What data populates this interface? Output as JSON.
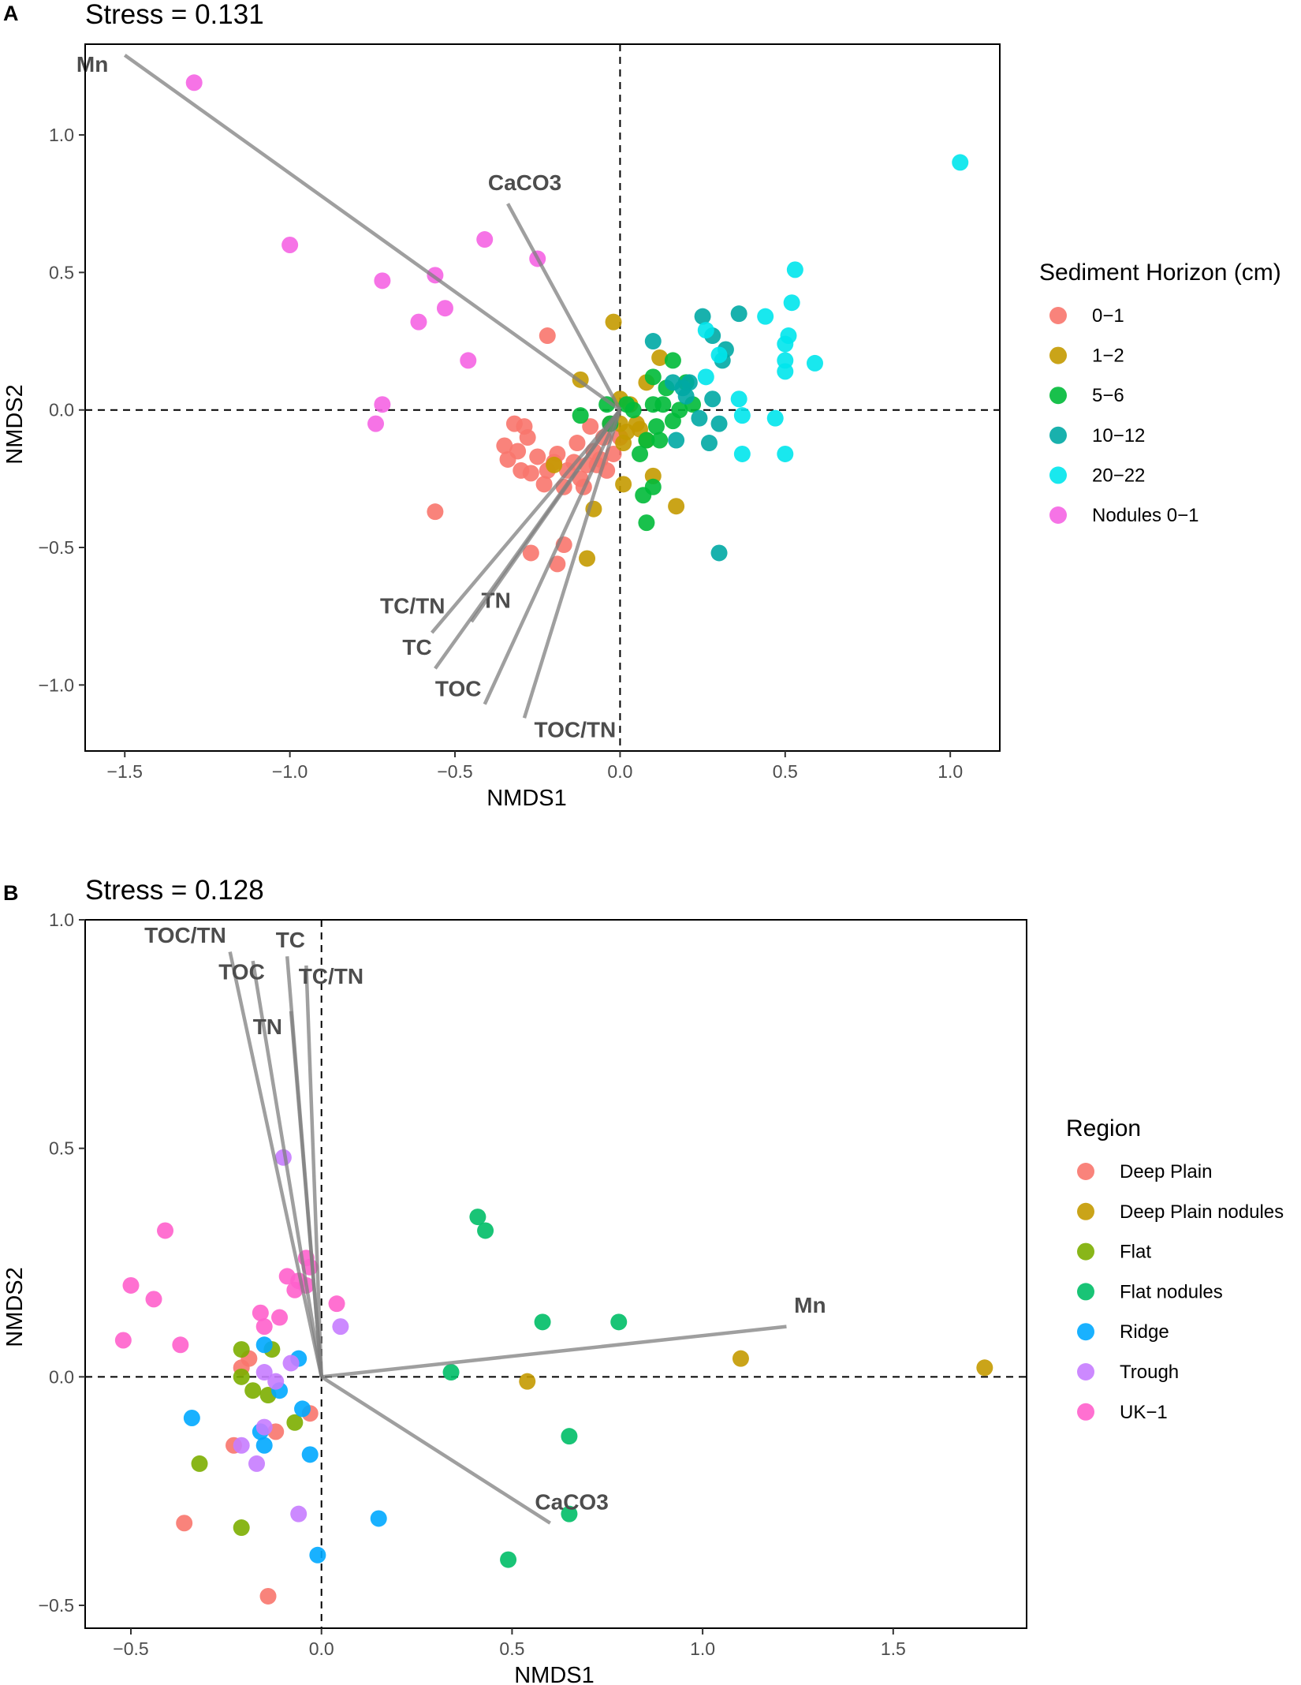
{
  "chart_data": [
    {
      "type": "scatter",
      "panel_label": "A",
      "title": "Stress = 0.131",
      "xlabel": "NMDS1",
      "ylabel": "NMDS2",
      "xlim": [
        -1.62,
        1.15
      ],
      "ylim": [
        -1.24,
        1.33
      ],
      "xticks": [
        -1.5,
        -1.0,
        -0.5,
        0.0,
        0.5,
        1.0
      ],
      "xtick_labels": [
        "−1.5",
        "−1.0",
        "−0.5",
        "0.0",
        "0.5",
        "1.0"
      ],
      "yticks": [
        -1.0,
        -0.5,
        0.0,
        0.5,
        1.0
      ],
      "ytick_labels": [
        "−1.0",
        "−0.5",
        "0.0",
        "0.5",
        "1.0"
      ],
      "grid": false,
      "legend_position": "right",
      "legend_title": "Sediment Horizon (cm)",
      "series": [
        {
          "name": "0−1",
          "color": "#F8766D",
          "points": [
            [
              -0.22,
              0.27
            ],
            [
              -0.32,
              -0.05
            ],
            [
              -0.29,
              -0.06
            ],
            [
              -0.35,
              -0.13
            ],
            [
              -0.34,
              -0.18
            ],
            [
              -0.31,
              -0.15
            ],
            [
              -0.28,
              -0.1
            ],
            [
              -0.25,
              -0.17
            ],
            [
              -0.22,
              -0.22
            ],
            [
              -0.19,
              -0.16
            ],
            [
              -0.16,
              -0.22
            ],
            [
              -0.13,
              -0.12
            ],
            [
              -0.1,
              -0.2
            ],
            [
              -0.08,
              -0.15
            ],
            [
              -0.05,
              -0.1
            ],
            [
              -0.03,
              -0.05
            ],
            [
              -0.3,
              -0.22
            ],
            [
              -0.27,
              -0.23
            ],
            [
              -0.23,
              -0.27
            ],
            [
              -0.2,
              -0.19
            ],
            [
              -0.17,
              -0.28
            ],
            [
              -0.14,
              -0.19
            ],
            [
              -0.12,
              -0.25
            ],
            [
              -0.06,
              -0.18
            ],
            [
              -0.02,
              -0.16
            ],
            [
              -0.09,
              -0.06
            ],
            [
              -0.56,
              -0.37
            ],
            [
              -0.27,
              -0.52
            ],
            [
              -0.17,
              -0.49
            ],
            [
              -0.19,
              -0.56
            ],
            [
              -0.07,
              -0.2
            ],
            [
              -0.04,
              -0.22
            ],
            [
              0.0,
              -0.1
            ],
            [
              -0.11,
              -0.28
            ]
          ]
        },
        {
          "name": "1−2",
          "color": "#C49A00",
          "points": [
            [
              -0.02,
              0.32
            ],
            [
              -0.12,
              0.11
            ],
            [
              0.12,
              0.19
            ],
            [
              0.08,
              0.1
            ],
            [
              0.0,
              0.04
            ],
            [
              0.02,
              -0.08
            ],
            [
              0.05,
              -0.05
            ],
            [
              0.06,
              -0.07
            ],
            [
              0.01,
              -0.12
            ],
            [
              0.0,
              -0.05
            ],
            [
              -0.2,
              -0.2
            ],
            [
              -0.08,
              -0.36
            ],
            [
              -0.1,
              -0.54
            ],
            [
              0.17,
              -0.35
            ],
            [
              0.1,
              -0.24
            ],
            [
              0.01,
              -0.27
            ],
            [
              0.03,
              0.02
            ],
            [
              0.08,
              -0.11
            ]
          ]
        },
        {
          "name": "5−6",
          "color": "#00BA38",
          "points": [
            [
              -0.12,
              -0.02
            ],
            [
              -0.04,
              0.02
            ],
            [
              0.02,
              0.02
            ],
            [
              0.1,
              0.12
            ],
            [
              0.14,
              0.08
            ],
            [
              0.16,
              0.18
            ],
            [
              0.1,
              0.02
            ],
            [
              0.13,
              0.02
            ],
            [
              0.18,
              0.0
            ],
            [
              0.22,
              0.02
            ],
            [
              0.16,
              -0.04
            ],
            [
              0.11,
              -0.06
            ],
            [
              0.08,
              -0.11
            ],
            [
              0.12,
              -0.11
            ],
            [
              0.06,
              -0.16
            ],
            [
              0.1,
              -0.28
            ],
            [
              0.07,
              -0.31
            ],
            [
              0.08,
              -0.41
            ],
            [
              -0.03,
              -0.05
            ],
            [
              0.04,
              0.0
            ],
            [
              0.2,
              0.1
            ]
          ]
        },
        {
          "name": "10−12",
          "color": "#00A9A4",
          "points": [
            [
              0.1,
              0.25
            ],
            [
              0.25,
              0.34
            ],
            [
              0.28,
              0.27
            ],
            [
              0.36,
              0.35
            ],
            [
              0.32,
              0.22
            ],
            [
              0.31,
              0.18
            ],
            [
              0.21,
              0.1
            ],
            [
              0.19,
              0.08
            ],
            [
              0.28,
              0.04
            ],
            [
              0.24,
              -0.03
            ],
            [
              0.27,
              -0.12
            ],
            [
              0.17,
              -0.11
            ],
            [
              0.3,
              -0.05
            ],
            [
              0.3,
              -0.52
            ],
            [
              0.2,
              0.05
            ],
            [
              0.16,
              0.1
            ]
          ]
        },
        {
          "name": "20−22",
          "color": "#00E5EC",
          "points": [
            [
              1.03,
              0.9
            ],
            [
              0.53,
              0.51
            ],
            [
              0.52,
              0.39
            ],
            [
              0.44,
              0.34
            ],
            [
              0.51,
              0.27
            ],
            [
              0.5,
              0.24
            ],
            [
              0.5,
              0.18
            ],
            [
              0.59,
              0.17
            ],
            [
              0.5,
              0.14
            ],
            [
              0.26,
              0.29
            ],
            [
              0.3,
              0.2
            ],
            [
              0.26,
              0.12
            ],
            [
              0.36,
              0.04
            ],
            [
              0.37,
              -0.02
            ],
            [
              0.37,
              -0.16
            ],
            [
              0.47,
              -0.03
            ],
            [
              0.5,
              -0.16
            ]
          ]
        },
        {
          "name": "Nodules 0−1",
          "color": "#F564E3",
          "points": [
            [
              -1.29,
              1.19
            ],
            [
              -1.0,
              0.6
            ],
            [
              -0.41,
              0.62
            ],
            [
              -0.25,
              0.55
            ],
            [
              -0.72,
              0.47
            ],
            [
              -0.56,
              0.49
            ],
            [
              -0.53,
              0.37
            ],
            [
              -0.61,
              0.32
            ],
            [
              -0.46,
              0.18
            ],
            [
              -0.72,
              0.02
            ],
            [
              -0.74,
              -0.05
            ]
          ]
        }
      ],
      "vectors": [
        {
          "label": "Mn",
          "end": [
            -1.5,
            1.29
          ],
          "label_pos": [
            -1.55,
            1.23
          ],
          "anchor": "end"
        },
        {
          "label": "CaCO3",
          "end": [
            -0.34,
            0.75
          ],
          "label_pos": [
            -0.4,
            0.8
          ],
          "anchor": "start"
        },
        {
          "label": "TC/TN",
          "end": [
            -0.57,
            -0.81
          ],
          "label_pos": [
            -0.53,
            -0.74
          ],
          "anchor": "end"
        },
        {
          "label": "TN",
          "end": [
            -0.45,
            -0.77
          ],
          "label_pos": [
            -0.42,
            -0.72
          ],
          "anchor": "start"
        },
        {
          "label": "TC",
          "end": [
            -0.56,
            -0.94
          ],
          "label_pos": [
            -0.57,
            -0.89
          ],
          "anchor": "end"
        },
        {
          "label": "TOC",
          "end": [
            -0.41,
            -1.07
          ],
          "label_pos": [
            -0.56,
            -1.04
          ],
          "anchor": "start"
        },
        {
          "label": "TOC/TN",
          "end": [
            -0.29,
            -1.12
          ],
          "label_pos": [
            -0.26,
            -1.19
          ],
          "anchor": "start"
        }
      ]
    },
    {
      "type": "scatter",
      "panel_label": "B",
      "title": "Stress = 0.128",
      "xlabel": "NMDS1",
      "ylabel": "NMDS2",
      "xlim": [
        -0.62,
        1.85
      ],
      "ylim": [
        -0.55,
        1.0
      ],
      "xticks": [
        -0.5,
        0.0,
        0.5,
        1.0,
        1.5
      ],
      "xtick_labels": [
        "−0.5",
        "0.0",
        "0.5",
        "1.0",
        "1.5"
      ],
      "yticks": [
        -0.5,
        0.0,
        0.5,
        1.0
      ],
      "ytick_labels": [
        "−0.5",
        "0.0",
        "0.5",
        "1.0"
      ],
      "grid": false,
      "legend_position": "right",
      "legend_title": "Region",
      "series": [
        {
          "name": "Deep Plain",
          "color": "#F8766D",
          "points": [
            [
              -0.21,
              0.02
            ],
            [
              -0.19,
              0.04
            ],
            [
              -0.03,
              -0.08
            ],
            [
              -0.12,
              -0.12
            ],
            [
              -0.23,
              -0.15
            ],
            [
              -0.36,
              -0.32
            ],
            [
              -0.14,
              -0.48
            ]
          ]
        },
        {
          "name": "Deep Plain nodules",
          "color": "#C49A00",
          "points": [
            [
              1.1,
              0.04
            ],
            [
              1.74,
              0.02
            ],
            [
              0.54,
              -0.01
            ]
          ]
        },
        {
          "name": "Flat",
          "color": "#7CAE00",
          "points": [
            [
              -0.21,
              0.06
            ],
            [
              -0.13,
              0.06
            ],
            [
              -0.21,
              0.0
            ],
            [
              -0.18,
              -0.03
            ],
            [
              -0.14,
              -0.04
            ],
            [
              -0.07,
              -0.1
            ],
            [
              -0.32,
              -0.19
            ],
            [
              -0.21,
              -0.33
            ]
          ]
        },
        {
          "name": "Flat nodules",
          "color": "#00BE67",
          "points": [
            [
              0.41,
              0.35
            ],
            [
              0.43,
              0.32
            ],
            [
              0.58,
              0.12
            ],
            [
              0.78,
              0.12
            ],
            [
              0.34,
              0.01
            ],
            [
              0.65,
              -0.13
            ],
            [
              0.65,
              -0.3
            ],
            [
              0.49,
              -0.4
            ]
          ]
        },
        {
          "name": "Ridge",
          "color": "#00A9FF",
          "points": [
            [
              -0.06,
              0.04
            ],
            [
              -0.15,
              0.07
            ],
            [
              -0.11,
              -0.03
            ],
            [
              -0.05,
              -0.07
            ],
            [
              -0.34,
              -0.09
            ],
            [
              -0.16,
              -0.12
            ],
            [
              -0.15,
              -0.15
            ],
            [
              -0.03,
              -0.17
            ],
            [
              0.15,
              -0.31
            ],
            [
              -0.01,
              -0.39
            ]
          ]
        },
        {
          "name": "Trough",
          "color": "#C77CFF",
          "points": [
            [
              -0.1,
              0.48
            ],
            [
              0.05,
              0.11
            ],
            [
              -0.08,
              0.03
            ],
            [
              -0.15,
              0.01
            ],
            [
              -0.12,
              -0.01
            ],
            [
              -0.15,
              -0.11
            ],
            [
              -0.21,
              -0.15
            ],
            [
              -0.17,
              -0.19
            ],
            [
              -0.06,
              -0.3
            ]
          ]
        },
        {
          "name": "UK−1",
          "color": "#FF61CC",
          "points": [
            [
              -0.41,
              0.32
            ],
            [
              -0.5,
              0.2
            ],
            [
              -0.44,
              0.17
            ],
            [
              -0.52,
              0.08
            ],
            [
              -0.37,
              0.07
            ],
            [
              -0.16,
              0.14
            ],
            [
              -0.11,
              0.13
            ],
            [
              -0.15,
              0.11
            ],
            [
              -0.04,
              0.26
            ],
            [
              -0.03,
              0.24
            ],
            [
              -0.06,
              0.21
            ],
            [
              -0.09,
              0.22
            ],
            [
              -0.07,
              0.19
            ],
            [
              -0.04,
              0.2
            ],
            [
              0.04,
              0.16
            ]
          ]
        }
      ],
      "vectors": [
        {
          "label": "TOC/TN",
          "end": [
            -0.24,
            0.93
          ],
          "label_pos": [
            -0.25,
            0.95
          ],
          "anchor": "end"
        },
        {
          "label": "TOC",
          "end": [
            -0.18,
            0.91
          ],
          "label_pos": [
            -0.27,
            0.87
          ],
          "anchor": "start"
        },
        {
          "label": "TC",
          "end": [
            -0.09,
            0.92
          ],
          "label_pos": [
            -0.12,
            0.94
          ],
          "anchor": "start"
        },
        {
          "label": "TC/TN",
          "end": [
            -0.04,
            0.9
          ],
          "label_pos": [
            -0.06,
            0.86
          ],
          "anchor": "start"
        },
        {
          "label": "TN",
          "end": [
            -0.08,
            0.8
          ],
          "label_pos": [
            -0.18,
            0.75
          ],
          "anchor": "start"
        },
        {
          "label": "Mn",
          "end": [
            1.22,
            0.11
          ],
          "label_pos": [
            1.24,
            0.14
          ],
          "anchor": "start"
        },
        {
          "label": "CaCO3",
          "end": [
            0.6,
            -0.32
          ],
          "label_pos": [
            0.56,
            -0.29
          ],
          "anchor": "start"
        }
      ]
    }
  ]
}
